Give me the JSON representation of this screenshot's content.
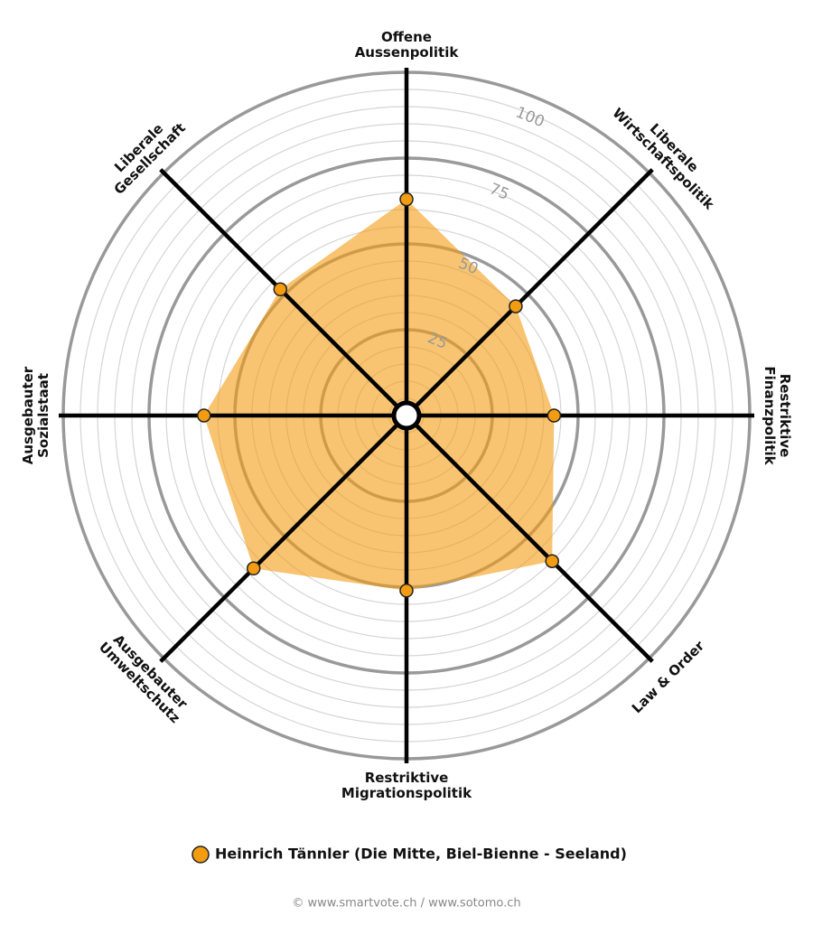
{
  "chart_data": {
    "type": "radar",
    "categories": [
      [
        "Offene",
        "Aussenpolitik"
      ],
      [
        "Liberale",
        "Wirtschaftspolitik"
      ],
      [
        "Restriktive",
        "Finanzpolitik"
      ],
      [
        "Law & Order"
      ],
      [
        "Restriktive",
        "Migrationspolitik"
      ],
      [
        "Ausgebauter",
        "Umweltschutz"
      ],
      [
        "Ausgebauter",
        "Sozialstaat"
      ],
      [
        "Liberale",
        "Gesellschaft"
      ]
    ],
    "series": [
      {
        "name": "Heinrich Tännler (Die Mitte, Biel-Bienne - Seeland)",
        "color": "#f39c12",
        "values": [
          63,
          45,
          43,
          60,
          51,
          63,
          59,
          52
        ]
      }
    ],
    "rlim": [
      0,
      100
    ],
    "rticks": [
      25,
      50,
      75,
      100
    ],
    "grid": true,
    "footer": "© www.smartvote.ch / www.sotomo.ch"
  }
}
